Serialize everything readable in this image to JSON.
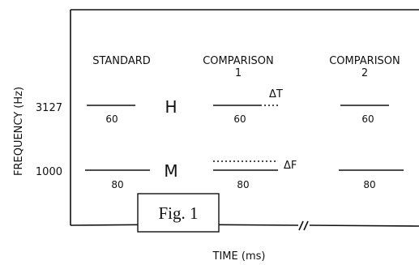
{
  "figure": {
    "y_axis_label": "FREQUENCY (Hz)",
    "x_axis_label": "TIME (ms)",
    "caption": "Fig. 1"
  },
  "frequencies": {
    "high": "3127",
    "low": "1000"
  },
  "columns": {
    "standard": {
      "title": "STANDARD"
    },
    "comparison1": {
      "title_line1": "COMPARISON",
      "title_line2": "1"
    },
    "comparison2": {
      "title_line1": "COMPARISON",
      "title_line2": "2"
    }
  },
  "tone_letters": {
    "high": "H",
    "low": "M"
  },
  "durations": {
    "standard_high": "60",
    "standard_low": "80",
    "comparison1_high": "60",
    "comparison1_low": "80",
    "comparison2_high": "60",
    "comparison2_low": "80"
  },
  "deltas": {
    "time": "ΔT",
    "frequency": "ΔF"
  }
}
